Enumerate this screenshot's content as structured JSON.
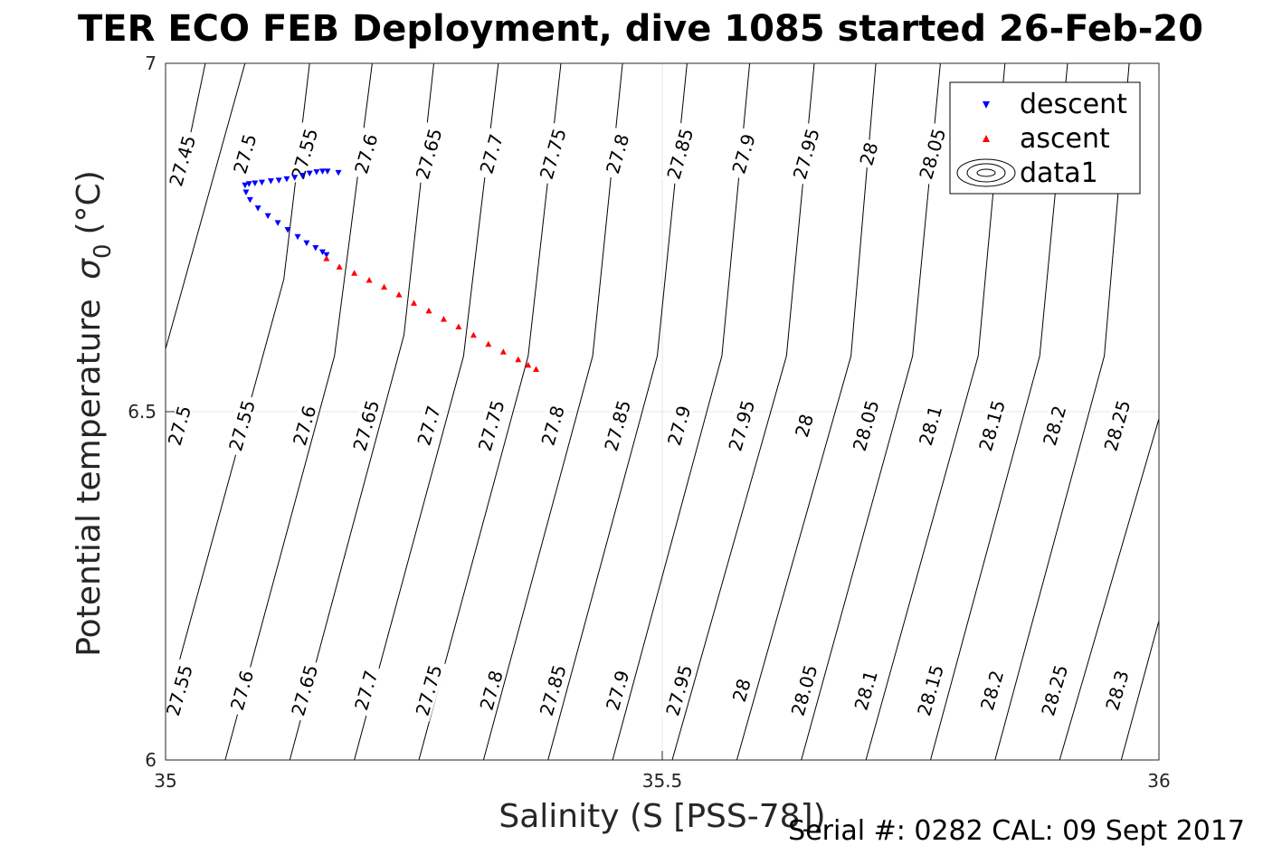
{
  "chart_data": {
    "type": "scatter",
    "title": "TER ECO FEB Deployment, dive 1085 started 26-Feb-20",
    "xlabel": "Salinity (S [PSS-78])",
    "ylabel_main": "Potential temperature",
    "ylabel_symbol": "σ",
    "ylabel_sub": "0",
    "ylabel_unit": "(°C)",
    "xlim": [
      35,
      36
    ],
    "ylim": [
      6,
      7
    ],
    "xticks": [
      35,
      35.5,
      36
    ],
    "xtick_labels": [
      "35",
      "35.5",
      "36"
    ],
    "yticks": [
      6,
      6.5,
      7
    ],
    "ytick_labels": [
      "6",
      "6.5",
      "7"
    ],
    "grid": true,
    "legend_position": "top-right",
    "legend": [
      "descent",
      "ascent",
      "data1"
    ],
    "series": [
      {
        "name": "descent",
        "marker": "triangle-down",
        "color": "#0000ff",
        "x": [
          35.174,
          35.163,
          35.158,
          35.152,
          35.145,
          35.138,
          35.13,
          35.122,
          35.114,
          35.106,
          35.097,
          35.09,
          35.084,
          35.08,
          35.081,
          35.085,
          35.093,
          35.103,
          35.113,
          35.123,
          35.133,
          35.142,
          35.151,
          35.158,
          35.162
        ],
        "y": [
          6.843,
          6.845,
          6.845,
          6.844,
          6.842,
          6.839,
          6.836,
          6.834,
          6.832,
          6.831,
          6.829,
          6.828,
          6.827,
          6.825,
          6.815,
          6.804,
          6.792,
          6.781,
          6.771,
          6.761,
          6.751,
          6.742,
          6.735,
          6.729,
          6.725
        ]
      },
      {
        "name": "ascent",
        "marker": "triangle-up",
        "color": "#ff0000",
        "x": [
          35.162,
          35.175,
          35.19,
          35.205,
          35.22,
          35.235,
          35.25,
          35.265,
          35.28,
          35.295,
          35.31,
          35.325,
          35.34,
          35.355,
          35.365,
          35.373
        ],
        "y": [
          6.72,
          6.708,
          6.699,
          6.689,
          6.679,
          6.668,
          6.656,
          6.645,
          6.633,
          6.622,
          6.61,
          6.597,
          6.586,
          6.575,
          6.567,
          6.561
        ]
      }
    ],
    "contours": [
      {
        "label": "27.45",
        "points": [
          [
            35.018,
            6.85
          ],
          [
            35.04,
            7.0
          ]
        ]
      },
      {
        "label": "27.5",
        "points": [
          [
            35.0,
            6.59
          ],
          [
            35.08,
            7.0
          ]
        ]
      },
      {
        "label": "27.55",
        "points": [
          [
            35.0,
            6.07
          ],
          [
            35.119,
            6.69
          ],
          [
            35.145,
            7.0
          ]
        ]
      },
      {
        "label": "27.6",
        "points": [
          [
            35.06,
            6.0
          ],
          [
            35.17,
            6.58
          ],
          [
            35.208,
            7.0
          ]
        ]
      },
      {
        "label": "27.65",
        "points": [
          [
            35.125,
            6.0
          ],
          [
            35.24,
            6.61
          ],
          [
            35.27,
            7.0
          ]
        ]
      },
      {
        "label": "27.7",
        "points": [
          [
            35.19,
            6.0
          ],
          [
            35.3,
            6.58
          ],
          [
            35.335,
            7.0
          ]
        ]
      },
      {
        "label": "27.75",
        "points": [
          [
            35.255,
            6.0
          ],
          [
            35.365,
            6.58
          ],
          [
            35.398,
            7.0
          ]
        ]
      },
      {
        "label": "27.8",
        "points": [
          [
            35.32,
            6.0
          ],
          [
            35.43,
            6.58
          ],
          [
            35.46,
            7.0
          ]
        ]
      },
      {
        "label": "27.85",
        "points": [
          [
            35.385,
            6.0
          ],
          [
            35.495,
            6.58
          ],
          [
            35.525,
            7.0
          ]
        ]
      },
      {
        "label": "27.9",
        "points": [
          [
            35.45,
            6.0
          ],
          [
            35.56,
            6.58
          ],
          [
            35.588,
            7.0
          ]
        ]
      },
      {
        "label": "27.95",
        "points": [
          [
            35.51,
            6.0
          ],
          [
            35.625,
            6.58
          ],
          [
            35.653,
            7.0
          ]
        ]
      },
      {
        "label": "28",
        "points": [
          [
            35.575,
            6.0
          ],
          [
            35.69,
            6.58
          ],
          [
            35.715,
            7.0
          ]
        ]
      },
      {
        "label": "28.05",
        "points": [
          [
            35.64,
            6.0
          ],
          [
            35.752,
            6.58
          ],
          [
            35.78,
            7.0
          ]
        ]
      },
      {
        "label": "28.1",
        "points": [
          [
            35.705,
            6.0
          ],
          [
            35.818,
            6.58
          ],
          [
            35.845,
            7.0
          ]
        ]
      },
      {
        "label": "28.15",
        "points": [
          [
            35.77,
            6.0
          ],
          [
            35.88,
            6.58
          ],
          [
            35.908,
            7.0
          ]
        ]
      },
      {
        "label": "28.2",
        "points": [
          [
            35.835,
            6.0
          ],
          [
            35.945,
            6.58
          ],
          [
            35.97,
            7.0
          ]
        ]
      },
      {
        "label": "28.25",
        "points": [
          [
            35.9,
            6.0
          ],
          [
            36.0,
            6.49
          ]
        ]
      },
      {
        "label": "28.3",
        "points": [
          [
            35.962,
            6.0
          ],
          [
            36.0,
            6.2
          ]
        ]
      }
    ],
    "contour_labels": [
      {
        "text": "27.45",
        "x": 35.017,
        "y": 6.86
      },
      {
        "text": "27.55",
        "x": 35.14,
        "y": 6.87
      },
      {
        "text": "27.5",
        "x": 35.08,
        "y": 6.87
      },
      {
        "text": "27.6",
        "x": 35.202,
        "y": 6.87
      },
      {
        "text": "27.65",
        "x": 35.265,
        "y": 6.87
      },
      {
        "text": "27.7",
        "x": 35.328,
        "y": 6.87
      },
      {
        "text": "27.75",
        "x": 35.39,
        "y": 6.87
      },
      {
        "text": "27.8",
        "x": 35.455,
        "y": 6.87
      },
      {
        "text": "27.85",
        "x": 35.518,
        "y": 6.87
      },
      {
        "text": "27.9",
        "x": 35.582,
        "y": 6.87
      },
      {
        "text": "27.95",
        "x": 35.645,
        "y": 6.87
      },
      {
        "text": "28",
        "x": 35.708,
        "y": 6.87
      },
      {
        "text": "28.05",
        "x": 35.772,
        "y": 6.87
      },
      {
        "text": "27.5",
        "x": 35.014,
        "y": 6.48
      },
      {
        "text": "27.55",
        "x": 35.077,
        "y": 6.48
      },
      {
        "text": "27.6",
        "x": 35.14,
        "y": 6.48
      },
      {
        "text": "27.65",
        "x": 35.202,
        "y": 6.48
      },
      {
        "text": "27.7",
        "x": 35.265,
        "y": 6.48
      },
      {
        "text": "27.75",
        "x": 35.328,
        "y": 6.48
      },
      {
        "text": "27.8",
        "x": 35.39,
        "y": 6.48
      },
      {
        "text": "27.85",
        "x": 35.455,
        "y": 6.48
      },
      {
        "text": "27.9",
        "x": 35.517,
        "y": 6.48
      },
      {
        "text": "27.95",
        "x": 35.58,
        "y": 6.48
      },
      {
        "text": "28",
        "x": 35.643,
        "y": 6.48
      },
      {
        "text": "28.05",
        "x": 35.705,
        "y": 6.48
      },
      {
        "text": "28.1",
        "x": 35.77,
        "y": 6.48
      },
      {
        "text": "28.15",
        "x": 35.832,
        "y": 6.48
      },
      {
        "text": "28.2",
        "x": 35.895,
        "y": 6.48
      },
      {
        "text": "28.25",
        "x": 35.958,
        "y": 6.48
      },
      {
        "text": "27.55",
        "x": 35.014,
        "y": 6.1
      },
      {
        "text": "27.6",
        "x": 35.077,
        "y": 6.1
      },
      {
        "text": "27.65",
        "x": 35.14,
        "y": 6.1
      },
      {
        "text": "27.7",
        "x": 35.202,
        "y": 6.1
      },
      {
        "text": "27.75",
        "x": 35.265,
        "y": 6.1
      },
      {
        "text": "27.8",
        "x": 35.328,
        "y": 6.1
      },
      {
        "text": "27.85",
        "x": 35.39,
        "y": 6.1
      },
      {
        "text": "27.9",
        "x": 35.455,
        "y": 6.1
      },
      {
        "text": "27.95",
        "x": 35.517,
        "y": 6.1
      },
      {
        "text": "28",
        "x": 35.58,
        "y": 6.1
      },
      {
        "text": "28.05",
        "x": 35.643,
        "y": 6.1
      },
      {
        "text": "28.1",
        "x": 35.705,
        "y": 6.1
      },
      {
        "text": "28.15",
        "x": 35.77,
        "y": 6.1
      },
      {
        "text": "28.2",
        "x": 35.832,
        "y": 6.1
      },
      {
        "text": "28.25",
        "x": 35.895,
        "y": 6.1
      },
      {
        "text": "28.3",
        "x": 35.958,
        "y": 6.1
      }
    ]
  },
  "footer": "Serial #: 0282  CAL: 09 Sept 2017",
  "colors": {
    "descent": "#0000ff",
    "ascent": "#ff0000",
    "grid": "#e6e6e6",
    "axis": "#262626",
    "contour": "#000000"
  }
}
